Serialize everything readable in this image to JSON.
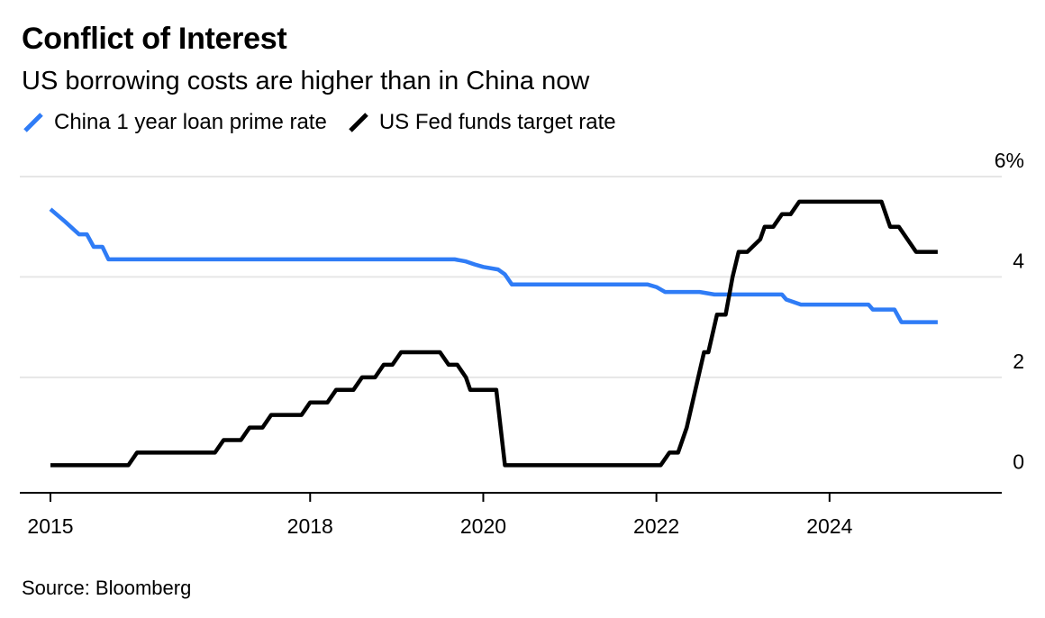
{
  "header": {
    "title": "Conflict of Interest",
    "subtitle": "US borrowing costs are higher than in China now"
  },
  "footer": {
    "source": "Source: Bloomberg"
  },
  "colors": {
    "china": "#2f7cf6",
    "us": "#000000",
    "grid": "#e6e6e6"
  },
  "chart_data": {
    "type": "line",
    "title": "Conflict of Interest",
    "subtitle": "US borrowing costs are higher than in China now",
    "xlabel": "",
    "ylabel": "",
    "xlim": [
      2015.0,
      2026.0
    ],
    "ylim": [
      -0.3,
      6
    ],
    "x_ticks": [
      {
        "value": 2015,
        "label": "2015"
      },
      {
        "value": 2018,
        "label": "2018"
      },
      {
        "value": 2020,
        "label": "2020"
      },
      {
        "value": 2022,
        "label": "2022"
      },
      {
        "value": 2024,
        "label": "2024"
      }
    ],
    "y_ticks": [
      {
        "value": 0,
        "label": "0"
      },
      {
        "value": 2,
        "label": "2"
      },
      {
        "value": 4,
        "label": "4"
      },
      {
        "value": 6,
        "label": "6%"
      }
    ],
    "grid": true,
    "y_axis_position": "right",
    "legend_position": "top-left",
    "series": [
      {
        "name": "China 1 year loan prime rate",
        "color": "#2f7cf6",
        "points": [
          [
            2015.0,
            5.35
          ],
          [
            2015.17,
            5.1
          ],
          [
            2015.33,
            4.85
          ],
          [
            2015.42,
            4.85
          ],
          [
            2015.5,
            4.6
          ],
          [
            2015.6,
            4.6
          ],
          [
            2015.67,
            4.35
          ],
          [
            2016.0,
            4.35
          ],
          [
            2017.0,
            4.35
          ],
          [
            2018.0,
            4.35
          ],
          [
            2018.5,
            4.35
          ],
          [
            2019.0,
            4.35
          ],
          [
            2019.67,
            4.35
          ],
          [
            2019.8,
            4.31
          ],
          [
            2019.9,
            4.25
          ],
          [
            2020.0,
            4.2
          ],
          [
            2020.17,
            4.15
          ],
          [
            2020.25,
            4.05
          ],
          [
            2020.33,
            3.85
          ],
          [
            2020.5,
            3.85
          ],
          [
            2021.0,
            3.85
          ],
          [
            2021.5,
            3.85
          ],
          [
            2021.9,
            3.85
          ],
          [
            2022.0,
            3.8
          ],
          [
            2022.1,
            3.7
          ],
          [
            2022.5,
            3.7
          ],
          [
            2022.67,
            3.65
          ],
          [
            2023.0,
            3.65
          ],
          [
            2023.45,
            3.65
          ],
          [
            2023.5,
            3.55
          ],
          [
            2023.67,
            3.45
          ],
          [
            2024.0,
            3.45
          ],
          [
            2024.45,
            3.45
          ],
          [
            2024.5,
            3.35
          ],
          [
            2024.75,
            3.35
          ],
          [
            2024.83,
            3.1
          ],
          [
            2025.0,
            3.1
          ],
          [
            2025.25,
            3.1
          ]
        ]
      },
      {
        "name": "US Fed funds target rate",
        "color": "#000000",
        "points": [
          [
            2015.0,
            0.25
          ],
          [
            2015.9,
            0.25
          ],
          [
            2016.0,
            0.5
          ],
          [
            2016.3,
            0.5
          ],
          [
            2016.9,
            0.5
          ],
          [
            2017.0,
            0.75
          ],
          [
            2017.2,
            0.75
          ],
          [
            2017.3,
            1.0
          ],
          [
            2017.45,
            1.0
          ],
          [
            2017.55,
            1.25
          ],
          [
            2017.9,
            1.25
          ],
          [
            2018.0,
            1.5
          ],
          [
            2018.2,
            1.5
          ],
          [
            2018.3,
            1.75
          ],
          [
            2018.5,
            1.75
          ],
          [
            2018.6,
            2.0
          ],
          [
            2018.75,
            2.0
          ],
          [
            2018.85,
            2.25
          ],
          [
            2018.95,
            2.25
          ],
          [
            2019.05,
            2.5
          ],
          [
            2019.5,
            2.5
          ],
          [
            2019.6,
            2.25
          ],
          [
            2019.7,
            2.25
          ],
          [
            2019.8,
            2.0
          ],
          [
            2019.85,
            1.75
          ],
          [
            2020.15,
            1.75
          ],
          [
            2020.25,
            0.25
          ],
          [
            2021.0,
            0.25
          ],
          [
            2022.05,
            0.25
          ],
          [
            2022.15,
            0.5
          ],
          [
            2022.25,
            0.5
          ],
          [
            2022.35,
            1.0
          ],
          [
            2022.45,
            1.75
          ],
          [
            2022.55,
            2.5
          ],
          [
            2022.6,
            2.5
          ],
          [
            2022.7,
            3.25
          ],
          [
            2022.8,
            3.25
          ],
          [
            2022.88,
            4.0
          ],
          [
            2022.95,
            4.5
          ],
          [
            2023.05,
            4.5
          ],
          [
            2023.2,
            4.75
          ],
          [
            2023.25,
            5.0
          ],
          [
            2023.35,
            5.0
          ],
          [
            2023.45,
            5.25
          ],
          [
            2023.55,
            5.25
          ],
          [
            2023.65,
            5.5
          ],
          [
            2024.0,
            5.5
          ],
          [
            2024.5,
            5.5
          ],
          [
            2024.6,
            5.5
          ],
          [
            2024.7,
            5.0
          ],
          [
            2024.8,
            5.0
          ],
          [
            2024.9,
            4.75
          ],
          [
            2025.0,
            4.5
          ],
          [
            2025.25,
            4.5
          ]
        ]
      }
    ]
  }
}
